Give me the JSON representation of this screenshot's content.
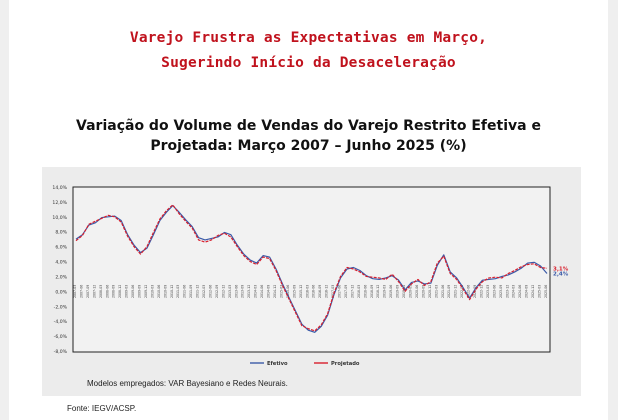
{
  "headline": {
    "line1": "Varejo Frustra as Expectativas em Março,",
    "line2": "Sugerindo Início da Desaceleração"
  },
  "footer": {
    "models_note": "Modelos empregados: VAR Bayesiano e Redes Neurais.",
    "source": "Fonte: IEGV/ACSP."
  },
  "chart_data": {
    "type": "line",
    "title_line1": "Variação do Volume de Vendas do Varejo Restrito Efetiva e",
    "title_line2": "Projetada: Março 2007 – Junho 2025 (%)",
    "ylim": [
      -8,
      14
    ],
    "yticks": [
      14,
      12,
      10,
      8,
      6,
      4,
      2,
      0,
      -2,
      -4,
      -6,
      -8
    ],
    "ytick_labels": [
      "14,0%",
      "12,0%",
      "10,0%",
      "8,0%",
      "6,0%",
      "4,0%",
      "2,0%",
      "0,0%",
      "-2,0%",
      "-4,0%",
      "-6,0%",
      "-8,0%"
    ],
    "x": [
      "2007-03",
      "2007-06",
      "2007-09",
      "2007-12",
      "2008-03",
      "2008-06",
      "2008-09",
      "2008-12",
      "2009-03",
      "2009-06",
      "2009-09",
      "2009-12",
      "2010-03",
      "2010-06",
      "2010-09",
      "2010-12",
      "2011-03",
      "2011-06",
      "2011-09",
      "2011-12",
      "2012-03",
      "2012-06",
      "2012-09",
      "2012-12",
      "2013-03",
      "2013-06",
      "2013-09",
      "2013-12",
      "2014-03",
      "2014-06",
      "2014-09",
      "2014-12",
      "2015-03",
      "2015-06",
      "2015-09",
      "2015-12",
      "2016-03",
      "2016-06",
      "2016-09",
      "2016-12",
      "2017-03",
      "2017-06",
      "2017-09",
      "2017-12",
      "2018-03",
      "2018-06",
      "2018-09",
      "2018-12",
      "2019-03",
      "2019-06",
      "2019-09",
      "2019-12",
      "2020-03",
      "2020-06",
      "2020-09",
      "2020-12",
      "2021-03",
      "2021-06",
      "2021-09",
      "2021-12",
      "2022-03",
      "2022-06",
      "2022-09",
      "2022-12",
      "2023-03",
      "2023-06",
      "2023-09",
      "2023-12",
      "2024-03",
      "2024-06",
      "2024-09",
      "2024-12",
      "2025-03",
      "2025-06"
    ],
    "grid": false,
    "legend_position": "bottom-center",
    "series": [
      {
        "name": "Efetivo",
        "color": "#3a5aa8",
        "values": [
          7.0,
          7.6,
          8.9,
          9.2,
          9.9,
          10.0,
          10.1,
          9.5,
          7.6,
          6.2,
          5.2,
          5.8,
          7.6,
          9.5,
          10.6,
          11.5,
          10.6,
          9.6,
          8.7,
          7.2,
          6.9,
          7.1,
          7.3,
          7.9,
          7.6,
          6.2,
          5.0,
          4.2,
          3.8,
          4.8,
          4.6,
          3.0,
          1.0,
          -0.8,
          -2.6,
          -4.4,
          -5.2,
          -5.5,
          -4.7,
          -3.2,
          -0.4,
          1.8,
          3.0,
          3.2,
          2.8,
          2.1,
          1.7,
          1.6,
          1.8,
          2.1,
          1.5,
          0.2,
          1.2,
          1.4,
          1.0,
          1.1,
          3.5,
          4.9,
          2.6,
          1.8,
          0.5,
          -0.9,
          0.5,
          1.5,
          1.6,
          1.7,
          2.0,
          2.2,
          2.6,
          3.1,
          3.8,
          3.9,
          3.4,
          2.4
        ]
      },
      {
        "name": "Projetado",
        "color": "#d81e2c",
        "values": [
          6.8,
          7.5,
          9.0,
          9.4,
          9.8,
          10.2,
          10.0,
          9.3,
          7.4,
          6.0,
          5.0,
          6.0,
          7.9,
          9.7,
          10.8,
          11.6,
          10.4,
          9.4,
          8.5,
          6.9,
          6.6,
          6.9,
          7.5,
          7.8,
          7.3,
          6.0,
          4.8,
          4.0,
          3.6,
          4.6,
          4.4,
          2.8,
          0.8,
          -1.0,
          -2.8,
          -4.6,
          -5.0,
          -5.3,
          -4.5,
          -3.0,
          -0.2,
          2.0,
          3.2,
          3.0,
          2.6,
          2.0,
          1.9,
          1.8,
          1.6,
          2.3,
          1.3,
          0.0,
          1.0,
          1.6,
          0.8,
          1.3,
          3.8,
          4.7,
          2.4,
          1.6,
          0.3,
          -1.1,
          0.3,
          1.3,
          1.8,
          1.9,
          1.8,
          2.4,
          2.8,
          3.3,
          3.6,
          3.7,
          3.2,
          3.1
        ]
      }
    ],
    "end_labels": [
      {
        "series": "Projetado",
        "text": "3,1%"
      },
      {
        "series": "Efetivo",
        "text": "2,4%"
      }
    ]
  }
}
